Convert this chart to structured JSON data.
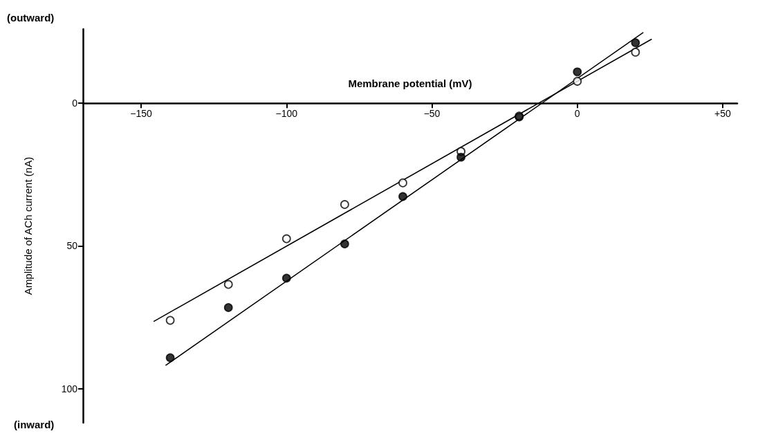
{
  "chart_data": {
    "type": "scatter",
    "xlabel": "Membrane potential (mV)",
    "ylabel": "Amplitude of ACh current (nA)",
    "annotations": [
      "(outward)",
      "(inward)"
    ],
    "xlim": [
      -170,
      55
    ],
    "xticks": [
      -150,
      -100,
      -50,
      0,
      {
        "value": 50,
        "label": "+50"
      }
    ],
    "ylim": [
      112,
      -26
    ],
    "yticks": [
      0,
      50,
      100
    ],
    "grid": false,
    "series": [
      {
        "marker": "circle",
        "color": "#ffffff",
        "x": [
          -140,
          -120,
          -100,
          -80,
          -60,
          -40,
          -20,
          0,
          20
        ],
        "values": [
          76.1,
          63.5,
          47.5,
          35.5,
          27.9,
          16.9,
          4.5,
          -7.7,
          -17.9
        ]
      },
      {
        "marker": "circle",
        "color": "#000000",
        "x": [
          -140,
          -120,
          -100,
          -80,
          -60,
          -40,
          -20,
          0,
          20
        ],
        "values": [
          89.2,
          71.6,
          61.3,
          49.3,
          32.7,
          18.9,
          4.8,
          -11,
          -21.2
        ]
      },
      {
        "type": "line",
        "marker": "none",
        "color": "#000000",
        "x": [
          -145.7,
          25.6
        ],
        "values": [
          76.5,
          -22.5
        ]
      },
      {
        "type": "line",
        "marker": "none",
        "color": "#000000",
        "x": [
          -141.6,
          22.7
        ],
        "values": [
          91.9,
          -24.8
        ]
      }
    ]
  }
}
